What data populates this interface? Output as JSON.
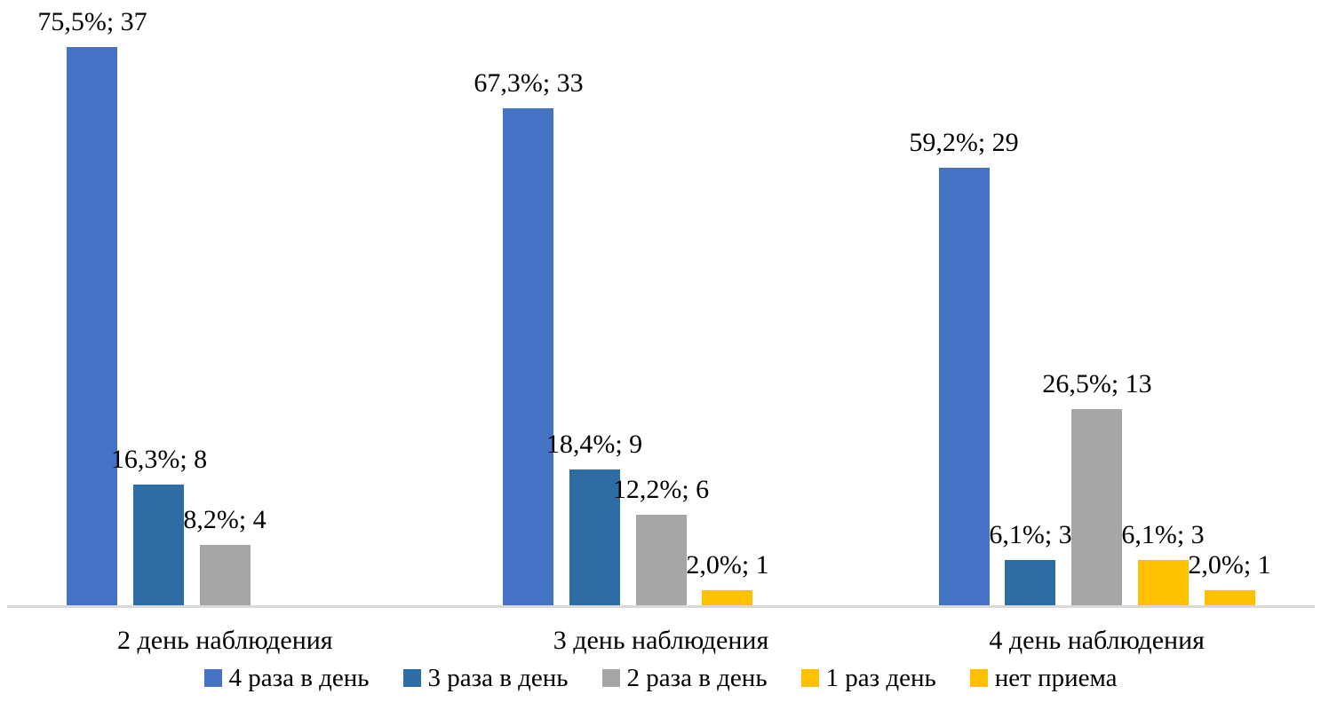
{
  "chart_data": {
    "type": "bar",
    "title": "",
    "xlabel": "",
    "ylabel": "",
    "ylim": [
      0,
      80
    ],
    "grid": false,
    "y_axis_visible": false,
    "legend_position": "bottom",
    "value_format": "percent, comma decimal; absolute count",
    "categories": [
      "2 день наблюдения",
      "3 день наблюдения",
      "4 день наблюдения"
    ],
    "series": [
      {
        "name": "4 раза в день",
        "color": "#4472C4",
        "values": [
          75.5,
          67.3,
          59.2
        ],
        "counts": [
          37,
          33,
          29
        ]
      },
      {
        "name": "3 раза в день",
        "color": "#2E6DA4",
        "values": [
          16.3,
          18.4,
          6.1
        ],
        "counts": [
          8,
          9,
          3
        ]
      },
      {
        "name": "2 раза в день",
        "color": "#A6A6A6",
        "values": [
          8.2,
          12.2,
          26.5
        ],
        "counts": [
          4,
          6,
          13
        ]
      },
      {
        "name": "1 раз день",
        "color": "#FFC000",
        "values": [
          0,
          2.0,
          6.1
        ],
        "counts": [
          0,
          1,
          3
        ]
      },
      {
        "name": "нет приема",
        "color": "#FFC000",
        "values": [
          0,
          0,
          2.0
        ],
        "counts": [
          0,
          0,
          1
        ]
      }
    ],
    "data_labels": [
      [
        "75,5%; 37",
        "16,3%; 8",
        "8,2%; 4",
        "",
        ""
      ],
      [
        "67,3%; 33",
        "18,4%; 9",
        "12,2%; 6",
        "2,0%; 1",
        ""
      ],
      [
        "59,2%; 29",
        "6,1%; 3",
        "26,5%; 13",
        "6,1%; 3",
        "2,0%; 1"
      ]
    ]
  },
  "colors": {
    "background": "#FFFFFF",
    "axis_line": "#D9D9D9",
    "label_text": "#000000"
  }
}
